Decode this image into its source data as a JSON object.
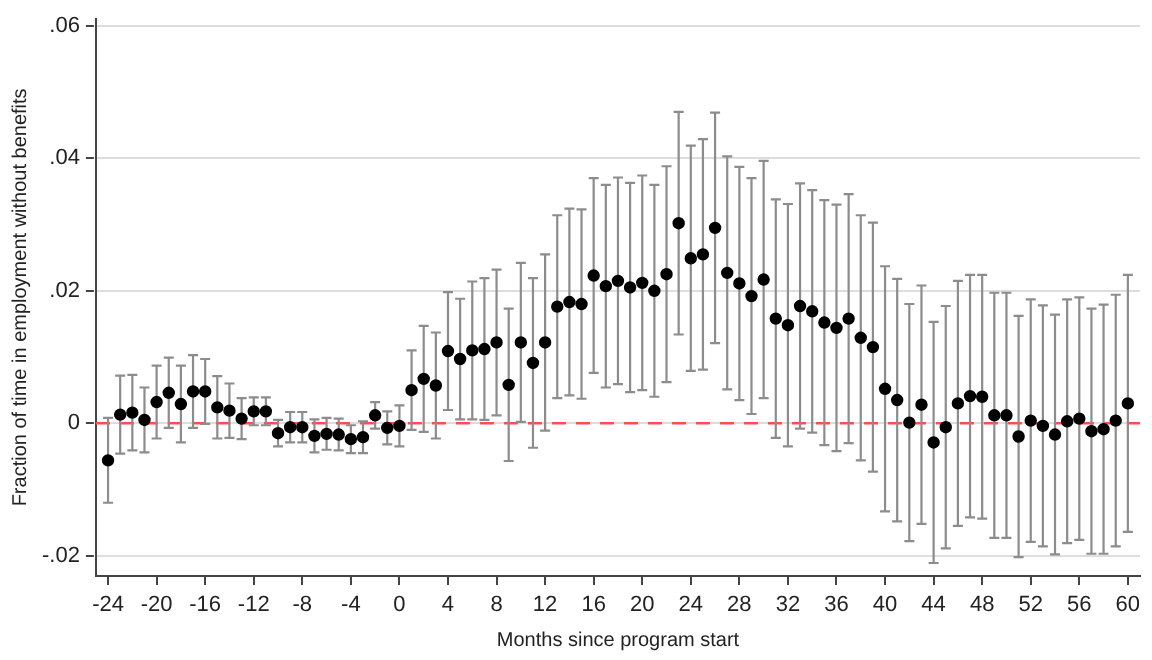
{
  "chart_data": {
    "type": "scatter",
    "xlabel": "Months since program start",
    "ylabel": "Fraction of time in employment without benefits",
    "x": [
      -24,
      -23,
      -22,
      -21,
      -20,
      -19,
      -18,
      -17,
      -16,
      -15,
      -14,
      -13,
      -12,
      -11,
      -10,
      -9,
      -8,
      -7,
      -6,
      -5,
      -4,
      -3,
      -2,
      -1,
      0,
      1,
      2,
      3,
      4,
      5,
      6,
      7,
      8,
      9,
      10,
      11,
      12,
      13,
      14,
      15,
      16,
      17,
      18,
      19,
      20,
      21,
      22,
      23,
      24,
      25,
      26,
      27,
      28,
      29,
      30,
      31,
      32,
      33,
      34,
      35,
      36,
      37,
      38,
      39,
      40,
      41,
      42,
      43,
      44,
      45,
      46,
      47,
      48,
      49,
      50,
      51,
      52,
      53,
      54,
      55,
      56,
      57,
      58,
      59,
      60
    ],
    "series": [
      {
        "color": "#000000",
        "values": [
          -0.0056,
          0.0013,
          0.0016,
          0.0005,
          0.0032,
          0.0046,
          0.0029,
          0.0048,
          0.0048,
          0.0024,
          0.0019,
          0.0007,
          0.0018,
          0.0018,
          -0.0015,
          -0.0006,
          -0.0006,
          -0.0019,
          -0.0016,
          -0.0017,
          -0.0024,
          -0.0021,
          0.0012,
          -0.0007,
          -0.0004,
          0.005,
          0.0067,
          0.0057,
          0.0109,
          0.0097,
          0.011,
          0.0112,
          0.0122,
          0.0058,
          0.0122,
          0.0091,
          0.0122,
          0.0176,
          0.0183,
          0.018,
          0.0223,
          0.0207,
          0.0215,
          0.0205,
          0.0212,
          0.02,
          0.0225,
          0.0302,
          0.0249,
          0.0255,
          0.0295,
          0.0227,
          0.0211,
          0.0192,
          0.0217,
          0.0158,
          0.0148,
          0.0177,
          0.0169,
          0.0152,
          0.0144,
          0.0158,
          0.0129,
          0.0115,
          0.0052,
          0.0035,
          0.0001,
          0.0028,
          -0.0029,
          -0.0006,
          0.003,
          0.0041,
          0.004,
          0.0012,
          0.0012,
          -0.002,
          0.0004,
          -0.0004,
          -0.0017,
          0.0003,
          0.0007,
          -0.0012,
          -0.0009,
          0.0004,
          0.003
        ],
        "errors": [
          0.0064,
          0.0059,
          0.0057,
          0.0049,
          0.0055,
          0.0053,
          0.0058,
          0.0055,
          0.0049,
          0.0047,
          0.0041,
          0.0031,
          0.0021,
          0.0021,
          0.002,
          0.0023,
          0.0023,
          0.0025,
          0.0024,
          0.0024,
          0.0021,
          0.0024,
          0.002,
          0.0025,
          0.0031,
          0.006,
          0.008,
          0.008,
          0.0089,
          0.0091,
          0.0104,
          0.0107,
          0.011,
          0.0115,
          0.012,
          0.0128,
          0.0133,
          0.0138,
          0.0141,
          0.0143,
          0.0147,
          0.0153,
          0.0156,
          0.0158,
          0.0162,
          0.016,
          0.0163,
          0.0168,
          0.017,
          0.0174,
          0.0174,
          0.0176,
          0.0176,
          0.0178,
          0.0179,
          0.018,
          0.0183,
          0.0185,
          0.0183,
          0.0185,
          0.0186,
          0.0188,
          0.0185,
          0.0188,
          0.0185,
          0.0183,
          0.0179,
          0.018,
          0.0182,
          0.0183,
          0.0185,
          0.0183,
          0.0184,
          0.0185,
          0.0185,
          0.0182,
          0.0183,
          0.0182,
          0.0181,
          0.0184,
          0.0183,
          0.0185,
          0.0188,
          0.019,
          0.0194
        ]
      }
    ],
    "marker": "circle",
    "grid": "y",
    "legend": false,
    "xlim": [
      -25,
      61
    ],
    "xticks": [
      -24,
      -20,
      -16,
      -12,
      -8,
      -4,
      0,
      4,
      8,
      12,
      16,
      20,
      24,
      28,
      32,
      36,
      40,
      44,
      48,
      52,
      56,
      60
    ],
    "ylim": [
      -0.023,
      0.061
    ],
    "yticks": [
      {
        "value": -0.02,
        "label": "-.02"
      },
      0,
      {
        "value": 0.02,
        "label": ".02"
      },
      {
        "value": 0.04,
        "label": ".04"
      },
      {
        "value": 0.06,
        "label": ".06"
      }
    ],
    "ref_lines": [
      {
        "axis": "y",
        "value": 0,
        "color": "#ff4d4d",
        "line_style": "dashed"
      }
    ]
  }
}
